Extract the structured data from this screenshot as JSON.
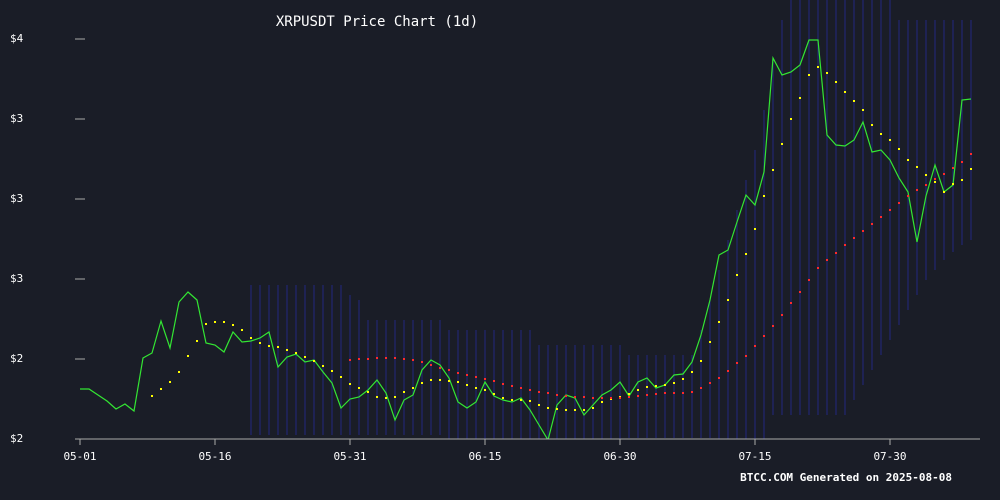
{
  "chart_data": {
    "type": "line",
    "title": "XRPUSDT Price Chart (1d)",
    "footer": "BTCC.COM Generated on 2025-08-08",
    "xlim": [
      0,
      100
    ],
    "ylim": [
      2,
      4
    ],
    "xticks": [
      {
        "value": 0,
        "label": "05-01"
      },
      {
        "value": 15,
        "label": "05-16"
      },
      {
        "value": 30,
        "label": "05-31"
      },
      {
        "value": 45,
        "label": "06-15"
      },
      {
        "value": 60,
        "label": "06-30"
      },
      {
        "value": 75,
        "label": "07-15"
      },
      {
        "value": 90,
        "label": "07-30"
      }
    ],
    "yticks": [
      {
        "value": 2.0,
        "label": "$2"
      },
      {
        "value": 2.4,
        "label": "$2"
      },
      {
        "value": 2.8,
        "label": "$3"
      },
      {
        "value": 3.2,
        "label": "$3"
      },
      {
        "value": 3.6,
        "label": "$3"
      },
      {
        "value": 4.0,
        "label": "$4"
      }
    ],
    "x": [
      0,
      1,
      2,
      3,
      4,
      5,
      6,
      7,
      8,
      9,
      10,
      11,
      12,
      13,
      14,
      15,
      16,
      17,
      18,
      19,
      20,
      21,
      22,
      23,
      24,
      25,
      26,
      27,
      28,
      29,
      30,
      31,
      32,
      33,
      34,
      35,
      36,
      37,
      38,
      39,
      40,
      41,
      42,
      43,
      44,
      45,
      46,
      47,
      48,
      49,
      50,
      51,
      52,
      53,
      54,
      55,
      56,
      57,
      58,
      59,
      60,
      61,
      62,
      63,
      64,
      65,
      66,
      67,
      68,
      69,
      70,
      71,
      72,
      73,
      74,
      75,
      76,
      77,
      78,
      79,
      80,
      81,
      82,
      83,
      84,
      85,
      86,
      87,
      88,
      89,
      90,
      91,
      92,
      93,
      94,
      95,
      96,
      97,
      98,
      99
    ],
    "band": {
      "color": "#23277a",
      "upper": [
        null,
        null,
        null,
        null,
        null,
        null,
        null,
        null,
        null,
        null,
        null,
        null,
        null,
        null,
        null,
        null,
        null,
        null,
        null,
        2.77,
        2.77,
        2.77,
        2.77,
        2.77,
        2.77,
        2.77,
        2.77,
        2.77,
        2.77,
        2.77,
        2.72,
        2.695,
        2.595,
        2.595,
        2.595,
        2.595,
        2.595,
        2.595,
        2.595,
        2.595,
        2.595,
        2.545,
        2.545,
        2.545,
        2.545,
        2.545,
        2.545,
        2.545,
        2.545,
        2.545,
        2.545,
        2.47,
        2.47,
        2.47,
        2.47,
        2.47,
        2.47,
        2.47,
        2.47,
        2.47,
        2.47,
        2.42,
        2.42,
        2.42,
        2.42,
        2.42,
        2.42,
        2.42,
        2.42,
        2.545,
        2.695,
        2.845,
        2.995,
        3.145,
        3.295,
        3.445,
        3.645,
        3.895,
        4.095,
        4.245,
        4.295,
        4.295,
        4.295,
        4.295,
        4.295,
        4.295,
        4.295,
        4.295,
        4.295,
        4.245,
        4.195,
        4.095,
        4.095,
        4.095,
        4.095,
        4.095,
        4.095,
        4.095,
        4.095,
        4.095
      ],
      "lower": [
        null,
        null,
        null,
        null,
        null,
        null,
        null,
        null,
        null,
        null,
        null,
        null,
        null,
        null,
        null,
        null,
        null,
        null,
        null,
        2.02,
        2.02,
        2.02,
        2.02,
        2.02,
        2.02,
        2.02,
        2.02,
        2.02,
        2.02,
        2.02,
        2.02,
        2.02,
        2.02,
        2.02,
        2.02,
        2.02,
        2.02,
        2.02,
        2.02,
        2.02,
        2.02,
        1.995,
        1.995,
        1.995,
        1.995,
        1.995,
        1.995,
        1.995,
        1.995,
        1.995,
        1.995,
        1.995,
        1.995,
        1.995,
        1.995,
        1.995,
        1.995,
        1.995,
        1.995,
        1.995,
        1.995,
        2.005,
        2.005,
        2.005,
        2.005,
        2.005,
        2.005,
        2.005,
        2.005,
        2.005,
        2.005,
        1.995,
        1.995,
        1.995,
        1.995,
        1.995,
        1.995,
        2.12,
        2.12,
        2.12,
        2.12,
        2.12,
        2.12,
        2.12,
        2.12,
        2.12,
        2.195,
        2.27,
        2.345,
        2.42,
        2.495,
        2.57,
        2.645,
        2.72,
        2.795,
        2.845,
        2.895,
        2.935,
        2.97,
        2.995
      ]
    },
    "series": [
      {
        "color": "#33e633",
        "style": "line",
        "values": [
          2.25,
          2.25,
          2.22,
          2.19,
          2.15,
          2.175,
          2.14,
          2.405,
          2.43,
          2.59,
          2.455,
          2.685,
          2.735,
          2.695,
          2.48,
          2.47,
          2.435,
          2.535,
          2.485,
          2.49,
          2.505,
          2.535,
          2.36,
          2.41,
          2.425,
          2.385,
          2.395,
          2.335,
          2.28,
          2.155,
          2.2,
          2.21,
          2.245,
          2.295,
          2.23,
          2.095,
          2.195,
          2.22,
          2.345,
          2.395,
          2.37,
          2.305,
          2.185,
          2.155,
          2.185,
          2.285,
          2.215,
          2.195,
          2.185,
          2.205,
          2.145,
          2.07,
          1.995,
          2.17,
          2.22,
          2.205,
          2.12,
          2.17,
          2.22,
          2.245,
          2.285,
          2.215,
          2.285,
          2.305,
          2.255,
          2.27,
          2.32,
          2.325,
          2.385,
          2.52,
          2.695,
          2.92,
          2.945,
          3.085,
          3.22,
          3.17,
          3.335,
          3.905,
          3.82,
          3.835,
          3.87,
          3.995,
          3.995,
          3.52,
          3.47,
          3.465,
          3.495,
          3.585,
          3.435,
          3.445,
          3.395,
          3.305,
          3.235,
          2.985,
          3.215,
          3.37,
          3.235,
          3.27,
          3.695,
          3.7
        ]
      },
      {
        "color": "#ffff00",
        "style": "dots",
        "values": [
          null,
          null,
          null,
          null,
          null,
          null,
          null,
          null,
          2.215,
          2.25,
          2.285,
          2.335,
          2.415,
          2.49,
          2.575,
          2.585,
          2.585,
          2.57,
          2.545,
          2.505,
          2.48,
          2.465,
          2.46,
          2.445,
          2.43,
          2.41,
          2.39,
          2.365,
          2.34,
          2.31,
          2.275,
          2.255,
          2.235,
          2.21,
          2.205,
          2.21,
          2.235,
          2.255,
          2.28,
          2.295,
          2.295,
          2.29,
          2.285,
          2.27,
          2.255,
          2.245,
          2.225,
          2.205,
          2.195,
          2.195,
          2.19,
          2.17,
          2.155,
          2.15,
          2.145,
          2.145,
          2.145,
          2.155,
          2.185,
          2.2,
          2.21,
          2.225,
          2.245,
          2.26,
          2.265,
          2.27,
          2.28,
          2.3,
          2.335,
          2.39,
          2.485,
          2.585,
          2.695,
          2.82,
          2.925,
          3.05,
          3.215,
          3.345,
          3.475,
          3.6,
          3.705,
          3.82,
          3.86,
          3.83,
          3.785,
          3.735,
          3.69,
          3.645,
          3.57,
          3.525,
          3.495,
          3.45,
          3.395,
          3.36,
          3.32,
          3.285,
          3.235,
          3.275,
          3.295,
          3.35
        ]
      },
      {
        "color": "#ff2a2a",
        "style": "dots",
        "values": [
          null,
          null,
          null,
          null,
          null,
          null,
          null,
          null,
          null,
          null,
          null,
          null,
          null,
          null,
          null,
          null,
          null,
          null,
          null,
          null,
          null,
          null,
          null,
          null,
          null,
          null,
          null,
          null,
          null,
          null,
          2.395,
          2.4,
          2.4,
          2.405,
          2.405,
          2.405,
          2.4,
          2.395,
          2.385,
          2.37,
          2.355,
          2.345,
          2.33,
          2.32,
          2.31,
          2.3,
          2.29,
          2.275,
          2.265,
          2.255,
          2.245,
          2.235,
          2.23,
          2.22,
          2.215,
          2.21,
          2.21,
          2.205,
          2.205,
          2.205,
          2.205,
          2.21,
          2.215,
          2.22,
          2.225,
          2.23,
          2.23,
          2.23,
          2.235,
          2.255,
          2.28,
          2.305,
          2.34,
          2.38,
          2.415,
          2.465,
          2.515,
          2.565,
          2.62,
          2.68,
          2.735,
          2.795,
          2.855,
          2.895,
          2.93,
          2.97,
          3.005,
          3.04,
          3.075,
          3.11,
          3.145,
          3.18,
          3.215,
          3.245,
          3.27,
          3.3,
          3.325,
          3.355,
          3.385,
          3.425
        ]
      }
    ]
  }
}
